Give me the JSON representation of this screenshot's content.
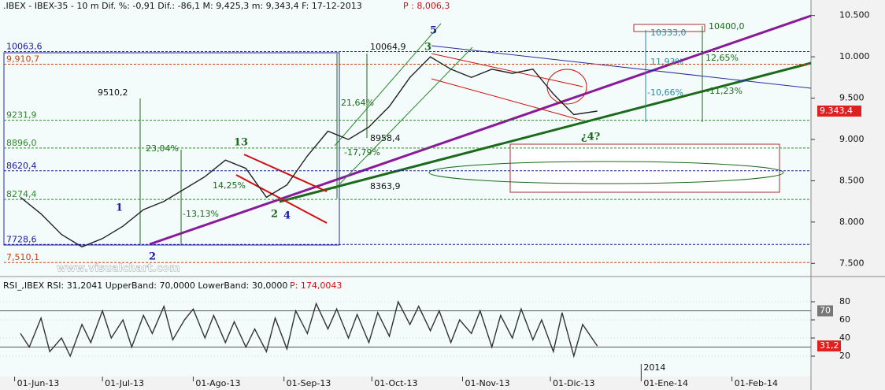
{
  "chart_data": [
    {
      "type": "line",
      "title": ".IBEX - IBEX-35 -  10 m Dif. %: -0,91 Dif.: -86,1 M: 9,425,3 m: 9,343,4 F: 17-12-2013",
      "header_price": "P : 8,006,3",
      "watermark": "www.visualchart.com",
      "xlim": [
        "27-May-13",
        "28-Feb-14"
      ],
      "ylim": [
        7350,
        10640
      ],
      "yticks": [
        {
          "value": 7500,
          "label": "7.500"
        },
        {
          "value": 8000,
          "label": "8.000"
        },
        {
          "value": 8500,
          "label": "8.500"
        },
        {
          "value": 9000,
          "label": "9.000"
        },
        {
          "value": 9500,
          "label": "9.500"
        },
        {
          "value": 10000,
          "label": "10.000"
        },
        {
          "value": 10500,
          "label": "10.500"
        }
      ],
      "series": [
        {
          "name": "IBEX-35",
          "color": "#222222",
          "x": [
            "03-Jun-13",
            "10-Jun-13",
            "17-Jun-13",
            "24-Jun-13",
            "01-Jul-13",
            "08-Jul-13",
            "15-Jul-13",
            "22-Jul-13",
            "29-Jul-13",
            "05-Ago-13",
            "12-Ago-13",
            "19-Ago-13",
            "26-Ago-13",
            "02-Sep-13",
            "09-Sep-13",
            "16-Sep-13",
            "23-Sep-13",
            "30-Sep-13",
            "07-Oct-13",
            "14-Oct-13",
            "21-Oct-13",
            "28-Oct-13",
            "04-Nov-13",
            "11-Nov-13",
            "18-Nov-13",
            "25-Nov-13",
            "02-Dic-13",
            "09-Dic-13",
            "17-Dic-13"
          ],
          "values": [
            8300,
            8100,
            7850,
            7700,
            7800,
            7950,
            8150,
            8250,
            8400,
            8550,
            8750,
            8650,
            8300,
            8450,
            8800,
            9100,
            9000,
            9150,
            9400,
            9750,
            10000,
            9850,
            9750,
            9850,
            9800,
            9850,
            9550,
            9300,
            9343.4
          ],
          "last_value_label": "9.343,4"
        }
      ],
      "levels": [
        {
          "value": 10063.6,
          "label": "10063,6",
          "color": "#1a1aa0"
        },
        {
          "value": 9910.7,
          "label": "9,910,7",
          "color": "#d04010"
        },
        {
          "value": 9231.9,
          "label": "9231,9",
          "color": "#2a8a2a"
        },
        {
          "value": 8896.0,
          "label": "8896,0",
          "color": "#2a8a2a"
        },
        {
          "value": 8620.4,
          "label": "8620,4",
          "color": "#1a1aa0"
        },
        {
          "value": 8274.4,
          "label": "8274,4",
          "color": "#2a8a2a"
        },
        {
          "value": 7728.6,
          "label": "7728,6",
          "color": "#1a1aa0"
        },
        {
          "value": 7510.1,
          "label": "7,510,1",
          "color": "#d04010"
        }
      ],
      "annotations": [
        "5",
        "3",
        "13",
        "1",
        "2",
        "2",
        "4",
        "¿4?",
        "11,93%",
        "12,65%",
        "-10,66%",
        "-11,23%",
        "23,04%",
        "21,64%",
        "-17,79%",
        "14,25%",
        "-13,13%",
        "10400,0",
        "10333,0",
        "10064,9",
        "9510,2",
        "8958,4",
        "8363,9"
      ]
    },
    {
      "type": "line",
      "title": "RSI_,IBEX RSI: 31,2041 UpperBand: 70,0000 LowerBand: 30,0000",
      "header_price": "P: 174,0043",
      "xlim": [
        "27-May-13",
        "28-Feb-14"
      ],
      "ylim": [
        0,
        100
      ],
      "yticks": [
        20,
        40,
        60,
        80
      ],
      "upper_band": {
        "value": 70,
        "label": "70"
      },
      "lower_band": 30,
      "xticks": [
        "01-Jun-13",
        "01-Jul-13",
        "01-Ago-13",
        "01-Sep-13",
        "01-Oct-13",
        "01-Nov-13",
        "01-Dic-13",
        "01-Ene-14",
        "01-Feb-14"
      ],
      "year_label": "2014",
      "series": [
        {
          "name": "RSI",
          "color": "#333333",
          "x": [
            "03-Jun-13",
            "06-Jun-13",
            "10-Jun-13",
            "13-Jun-13",
            "17-Jun-13",
            "20-Jun-13",
            "24-Jun-13",
            "27-Jun-13",
            "01-Jul-13",
            "04-Jul-13",
            "08-Jul-13",
            "11-Jul-13",
            "15-Jul-13",
            "18-Jul-13",
            "22-Jul-13",
            "25-Jul-13",
            "29-Jul-13",
            "01-Ago-13",
            "05-Ago-13",
            "08-Ago-13",
            "12-Ago-13",
            "15-Ago-13",
            "19-Ago-13",
            "22-Ago-13",
            "26-Ago-13",
            "29-Ago-13",
            "02-Sep-13",
            "05-Sep-13",
            "09-Sep-13",
            "12-Sep-13",
            "16-Sep-13",
            "19-Sep-13",
            "23-Sep-13",
            "26-Sep-13",
            "30-Sep-13",
            "03-Oct-13",
            "07-Oct-13",
            "10-Oct-13",
            "14-Oct-13",
            "17-Oct-13",
            "21-Oct-13",
            "24-Oct-13",
            "28-Oct-13",
            "31-Oct-13",
            "04-Nov-13",
            "07-Nov-13",
            "11-Nov-13",
            "14-Nov-13",
            "18-Nov-13",
            "21-Nov-13",
            "25-Nov-13",
            "28-Nov-13",
            "02-Dic-13",
            "05-Dic-13",
            "09-Dic-13",
            "12-Dic-13",
            "17-Dic-13"
          ],
          "values": [
            45,
            30,
            62,
            25,
            40,
            20,
            55,
            35,
            70,
            40,
            60,
            30,
            65,
            45,
            75,
            38,
            60,
            72,
            40,
            65,
            35,
            58,
            30,
            50,
            25,
            62,
            28,
            70,
            45,
            78,
            50,
            72,
            40,
            66,
            35,
            68,
            42,
            80,
            55,
            75,
            48,
            70,
            35,
            60,
            45,
            70,
            30,
            65,
            40,
            72,
            38,
            60,
            25,
            68,
            20,
            55,
            31.2041
          ],
          "last_value_label": "31,2"
        }
      ]
    }
  ]
}
